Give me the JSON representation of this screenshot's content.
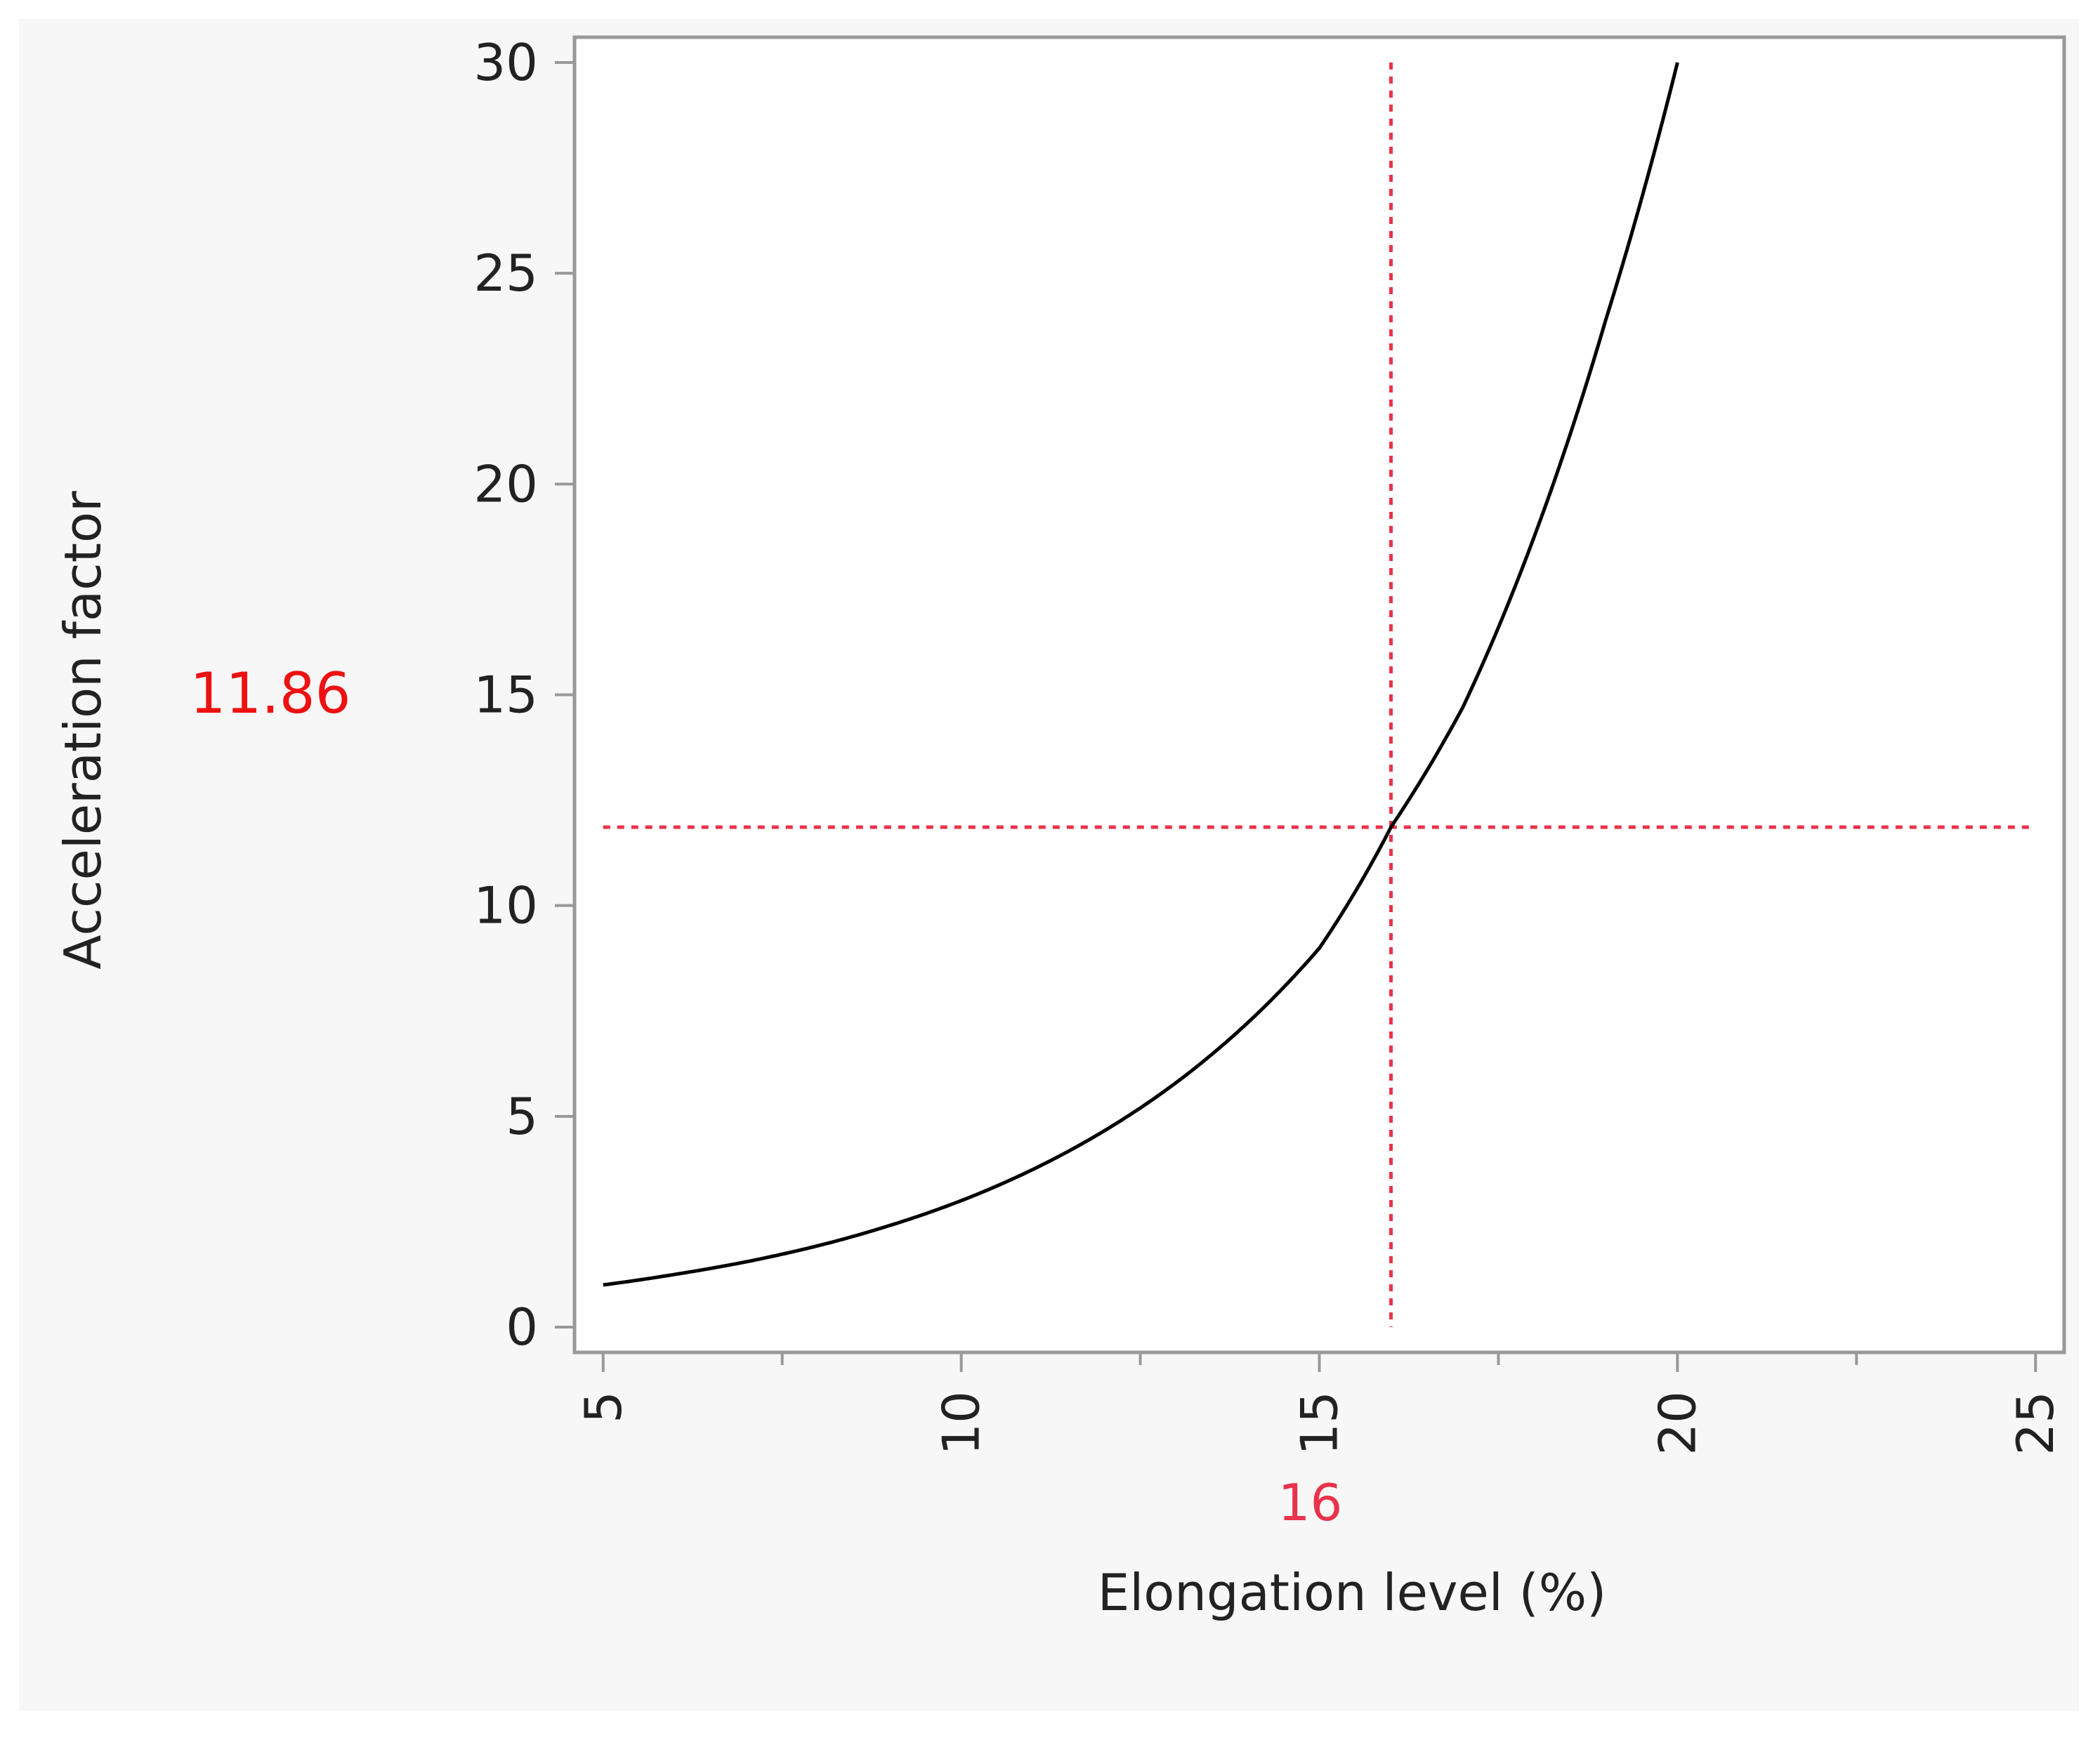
{
  "chart_data": {
    "type": "line",
    "title": "",
    "xlabel": "Elongation level (%)",
    "ylabel": "Acceleration factor",
    "xlim": [
      4.6,
      25.4
    ],
    "ylim": [
      -0.6,
      30.6
    ],
    "x_ticks": [
      "5",
      "10",
      "15",
      "20",
      "25"
    ],
    "y_ticks": [
      "0",
      "5",
      "10",
      "15",
      "20",
      "25",
      "30"
    ],
    "grid": false,
    "legend": "none",
    "series": [
      {
        "color": "#000000",
        "x": [
          5,
          6,
          7,
          8,
          9,
          10,
          11,
          12,
          13,
          14,
          15,
          16,
          17,
          18,
          19,
          20
        ],
        "y": [
          1.0,
          1.25,
          1.55,
          1.93,
          2.41,
          3.0,
          3.74,
          4.66,
          5.8,
          7.22,
          8.99,
          11.86,
          14.69,
          18.75,
          23.9,
          30.0
        ]
      }
    ],
    "crosshair": {
      "x": 16,
      "y": 11.86,
      "x_label": "16",
      "y_label": "11.86",
      "x_label_color": "#e8334a",
      "y_label_color": "#ee1111",
      "line_color": "#e8334a"
    }
  }
}
